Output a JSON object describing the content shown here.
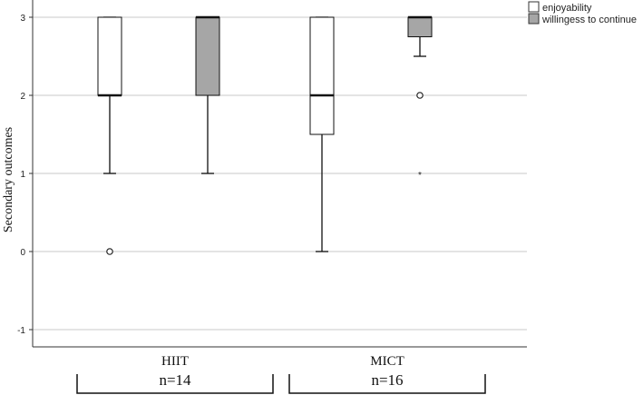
{
  "chart_data": {
    "type": "boxplot",
    "ylabel": "Secondary outcomes",
    "ylim": [
      -1.2,
      3.2
    ],
    "yticks": [
      "3",
      "2",
      "1",
      "0",
      "-1"
    ],
    "grid": true,
    "legend_position": "top-right",
    "categories": [
      "HIIT",
      "MICT"
    ],
    "group_labels": [
      {
        "category": "HIIT",
        "n_label": "n=14"
      },
      {
        "category": "MICT",
        "n_label": "n=16"
      }
    ],
    "series": [
      {
        "name": "enjoyability",
        "color": "#ffffff",
        "boxes": [
          {
            "category": "HIIT",
            "whisker_low": 1,
            "q1": 2,
            "median": 2,
            "q3": 3,
            "whisker_high": 3,
            "outliers": [
              0
            ],
            "extremes": []
          },
          {
            "category": "MICT",
            "whisker_low": 0,
            "q1": 1.5,
            "median": 2,
            "q3": 3,
            "whisker_high": 3,
            "outliers": [],
            "extremes": []
          }
        ]
      },
      {
        "name": "willingess to continue",
        "color": "#a6a6a6",
        "boxes": [
          {
            "category": "HIIT",
            "whisker_low": 1,
            "q1": 2,
            "median": 3,
            "q3": 3,
            "whisker_high": 3,
            "outliers": [],
            "extremes": []
          },
          {
            "category": "MICT",
            "whisker_low": 2.5,
            "q1": 2.75,
            "median": 3,
            "q3": 3,
            "whisker_high": 3,
            "outliers": [
              2
            ],
            "extremes": [
              1
            ]
          }
        ]
      }
    ]
  }
}
